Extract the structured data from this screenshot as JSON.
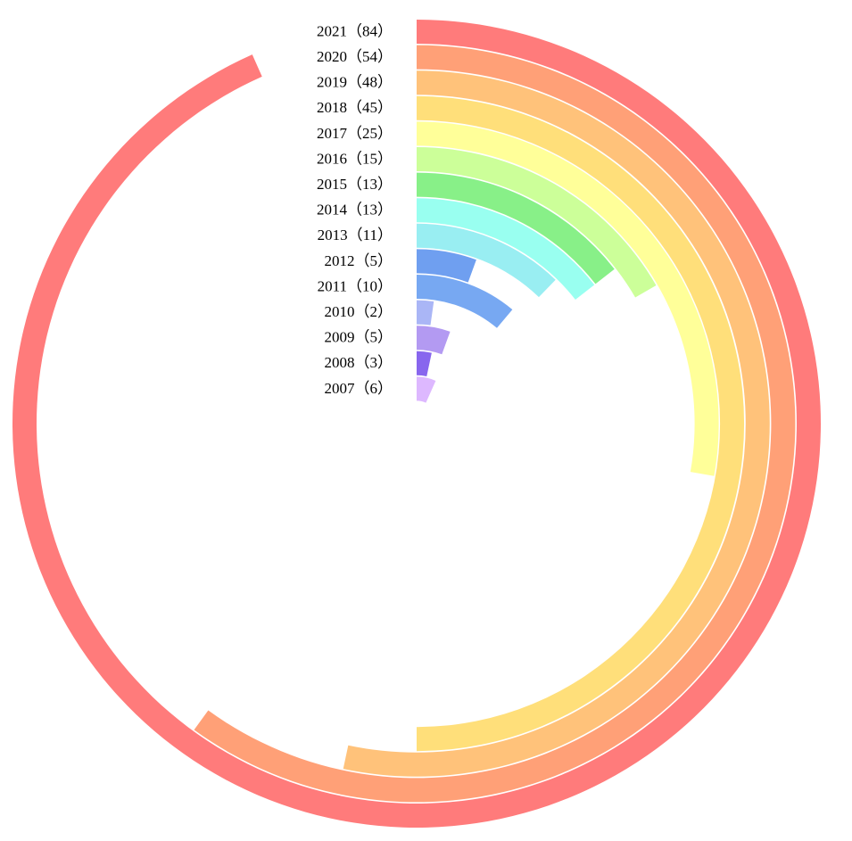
{
  "chart_data": {
    "type": "radial-bar",
    "categories": [
      "2021（84）",
      "2020（54）",
      "2019（48）",
      "2018（45）",
      "2017（25）",
      "2016（15）",
      "2015（13）",
      "2014（13）",
      "2013（11）",
      "2012（5）",
      "2011（10）",
      "2010（2）",
      "2009（5）",
      "2008（3）",
      "2007（6）"
    ],
    "values": [
      84,
      54,
      48,
      45,
      25,
      15,
      13,
      13,
      11,
      5,
      10,
      2,
      5,
      3,
      6
    ],
    "colors": [
      "#ff7b7b",
      "#ffa077",
      "#ffc27a",
      "#ffdf7a",
      "#ffff99",
      "#ccff99",
      "#88f088",
      "#99fff0",
      "#99eef2",
      "#6f9ff0",
      "#77a8f2",
      "#aab6f6",
      "#b39af2",
      "#8866ee",
      "#ddb8ff"
    ],
    "xlim": [
      0,
      90
    ]
  }
}
